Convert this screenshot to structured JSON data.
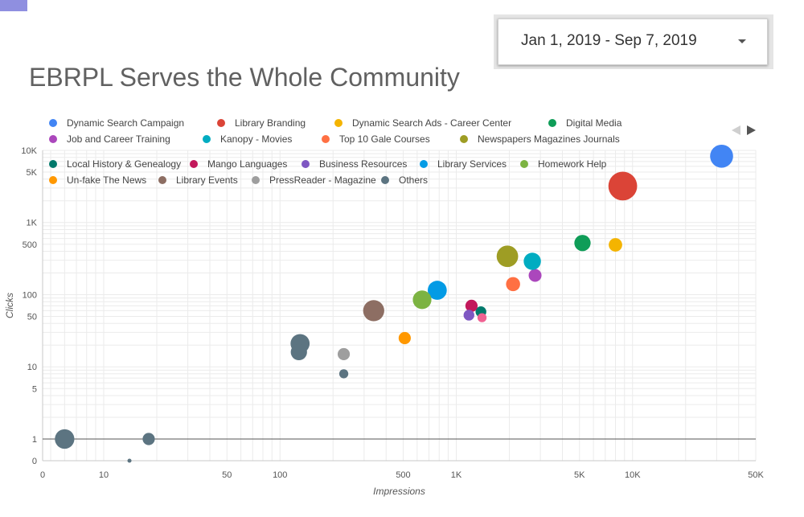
{
  "title": "EBRPL Serves the Whole Community",
  "date_range": {
    "label": "Jan 1, 2019 - Sep 7, 2019",
    "icon": "dropdown-arrow-icon"
  },
  "legend_nav": {
    "prev_icon": "chevron-left-icon",
    "next_icon": "chevron-right-icon"
  },
  "chart_data": {
    "type": "scatter",
    "xlabel": "Impressions",
    "ylabel": "Clicks",
    "x_scale": "log",
    "y_scale": "log",
    "xlim": [
      0,
      50000
    ],
    "ylim": [
      0,
      10000
    ],
    "x_ticks": [
      {
        "v": 0,
        "label": "0"
      },
      {
        "v": 10,
        "label": "10"
      },
      {
        "v": 50,
        "label": "50"
      },
      {
        "v": 100,
        "label": "100"
      },
      {
        "v": 500,
        "label": "500"
      },
      {
        "v": 1000,
        "label": "1K"
      },
      {
        "v": 5000,
        "label": "5K"
      },
      {
        "v": 10000,
        "label": "10K"
      },
      {
        "v": 50000,
        "label": "50K"
      }
    ],
    "y_ticks": [
      {
        "v": 0,
        "label": "0"
      },
      {
        "v": 1,
        "label": "1"
      },
      {
        "v": 5,
        "label": "5"
      },
      {
        "v": 10,
        "label": "10"
      },
      {
        "v": 50,
        "label": "50"
      },
      {
        "v": 100,
        "label": "100"
      },
      {
        "v": 500,
        "label": "500"
      },
      {
        "v": 1000,
        "label": "1K"
      },
      {
        "v": 5000,
        "label": "5K"
      },
      {
        "v": 10000,
        "label": "10K"
      }
    ],
    "series": [
      {
        "name": "Dynamic Search Campaign",
        "color": "#4285f4",
        "points": [
          {
            "x": 32000,
            "y": 8300,
            "size": 3.2
          }
        ]
      },
      {
        "name": "Library Branding",
        "color": "#db4437",
        "points": [
          {
            "x": 8800,
            "y": 3200,
            "size": 5.0
          }
        ]
      },
      {
        "name": "Dynamic Search Ads - Career Center",
        "color": "#f4b400",
        "points": [
          {
            "x": 8000,
            "y": 490,
            "size": 1.1
          }
        ]
      },
      {
        "name": "Digital Media",
        "color": "#0f9d58",
        "points": [
          {
            "x": 5200,
            "y": 520,
            "size": 1.6
          }
        ]
      },
      {
        "name": "Job and Career Training",
        "color": "#ab47bc",
        "points": [
          {
            "x": 2800,
            "y": 185,
            "size": 1.0
          }
        ]
      },
      {
        "name": "Kanopy - Movies",
        "color": "#00acc1",
        "points": [
          {
            "x": 2700,
            "y": 290,
            "size": 1.8
          }
        ]
      },
      {
        "name": "Top 10 Gale Courses",
        "color": "#ff7043",
        "points": [
          {
            "x": 2100,
            "y": 140,
            "size": 1.2
          }
        ]
      },
      {
        "name": "Newspapers Magazines Journals",
        "color": "#9e9d24",
        "points": [
          {
            "x": 1950,
            "y": 340,
            "size": 2.8
          }
        ]
      },
      {
        "name": "Local History & Genealogy",
        "color": "#00796b",
        "points": [
          {
            "x": 1380,
            "y": 58,
            "size": 0.7
          }
        ]
      },
      {
        "name": "Mango Languages",
        "color": "#c2185b",
        "points": [
          {
            "x": 1220,
            "y": 70,
            "size": 0.9
          }
        ]
      },
      {
        "name": "Business Resources",
        "color": "#7e57c2",
        "points": [
          {
            "x": 1180,
            "y": 52,
            "size": 0.7
          }
        ]
      },
      {
        "name": "Library Services",
        "color": "#039be5",
        "points": [
          {
            "x": 780,
            "y": 115,
            "size": 2.2
          }
        ]
      },
      {
        "name": "Homework Help",
        "color": "#7cb342",
        "points": [
          {
            "x": 640,
            "y": 85,
            "size": 2.1
          }
        ]
      },
      {
        "name": "Un-fake The News",
        "color": "#ff9800",
        "points": [
          {
            "x": 510,
            "y": 25,
            "size": 0.9
          }
        ]
      },
      {
        "name": "Library Events",
        "color": "#8d6e63",
        "points": [
          {
            "x": 340,
            "y": 60,
            "size": 2.7
          }
        ]
      },
      {
        "name": "PressReader - Magazine",
        "color": "#9e9e9e",
        "points": [
          {
            "x": 230,
            "y": 15,
            "size": 0.9
          }
        ]
      },
      {
        "name": "Others",
        "color": "#5c7481",
        "points": [
          {
            "x": 130,
            "y": 21,
            "size": 2.2
          },
          {
            "x": 128,
            "y": 16,
            "size": 1.6
          },
          {
            "x": 230,
            "y": 8,
            "size": 0.5
          },
          {
            "x": 6,
            "y": 1,
            "size": 2.3
          },
          {
            "x": 18,
            "y": 1,
            "size": 0.9
          },
          {
            "x": 14,
            "y": 0,
            "size": 0.1
          }
        ]
      },
      {
        "name": "Pink",
        "color": "#f06292",
        "legend": false,
        "points": [
          {
            "x": 1400,
            "y": 48,
            "size": 0.5
          }
        ]
      }
    ]
  }
}
